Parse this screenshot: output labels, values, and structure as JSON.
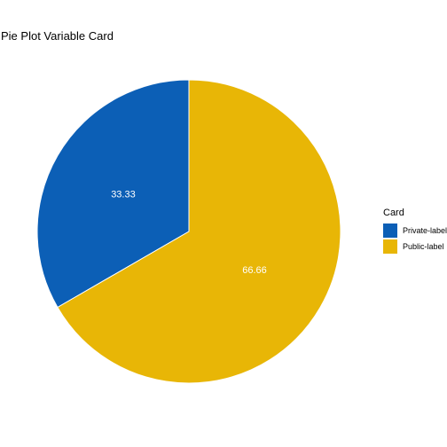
{
  "chart_data": {
    "type": "pie",
    "title": "Pie Plot Variable Card",
    "legend_title": "Card",
    "legend_position": "right",
    "slices": [
      {
        "name": "Private-label",
        "value": 33.33,
        "label": "33.33",
        "color": "#0C5FB6"
      },
      {
        "name": "Public-label",
        "value": 66.66,
        "label": "66.66",
        "color": "#E8B606"
      }
    ]
  }
}
